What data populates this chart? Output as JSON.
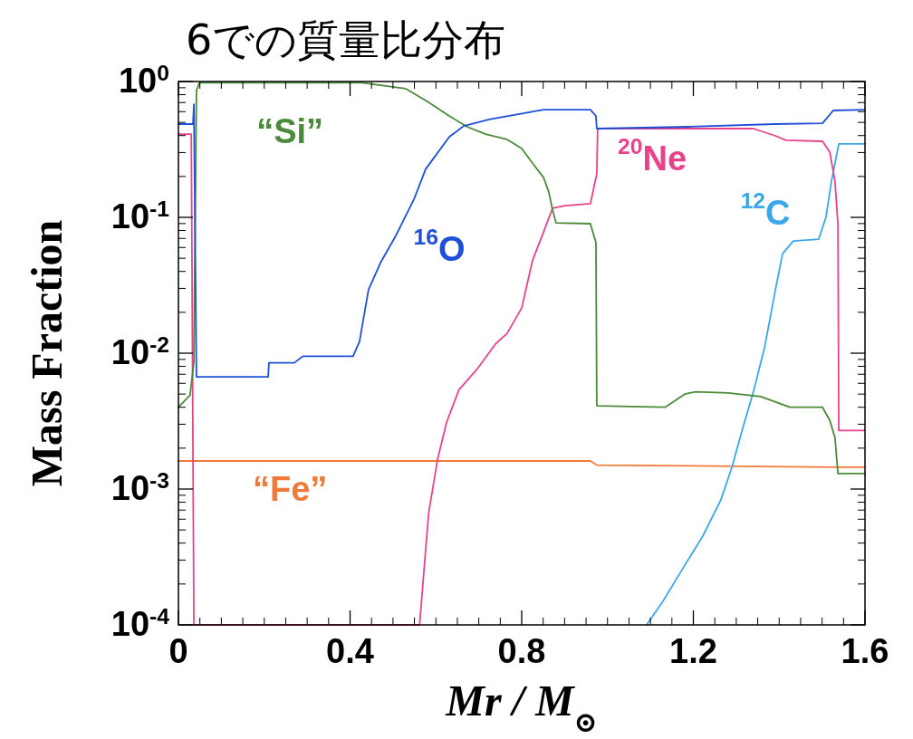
{
  "chart_data": {
    "type": "line",
    "title": "6での質量比分布",
    "xlabel": "Mr / M$_{⊙}$",
    "ylabel": "Mass Fraction",
    "log": "y",
    "xlim": [
      0,
      1.6
    ],
    "ylim": [
      0.0001,
      1
    ],
    "xticks": [
      0,
      0.4,
      0.8,
      1.2,
      1.6
    ],
    "yticks": [
      {
        "value": 0.0001,
        "label": "10$^{-4}$"
      },
      {
        "value": 0.001,
        "label": "10$^{-3}$"
      },
      {
        "value": 0.01,
        "label": "10$^{-2}$"
      },
      {
        "value": 0.1,
        "label": "10$^{-1}$"
      },
      {
        "value": 1,
        "label": "10$^{0}$"
      }
    ],
    "series": [
      {
        "name": "“Fe”",
        "color": "#f07a3a",
        "x": [
          0,
          0.96,
          0.975,
          1.53,
          1.6
        ],
        "values": [
          0.00161,
          0.00161,
          0.0015,
          0.00145,
          0.00145
        ]
      },
      {
        "name": "$^{12}$C",
        "color": "#3aa8e8",
        "x": [
          1.091,
          1.129,
          1.18,
          1.222,
          1.264,
          1.29,
          1.315,
          1.34,
          1.366,
          1.391,
          1.408,
          1.433,
          1.492,
          1.509,
          1.522,
          1.539,
          1.6
        ],
        "values": [
          0.0001,
          0.000149,
          0.000275,
          0.00045,
          0.00083,
          0.00145,
          0.0028,
          0.0052,
          0.011,
          0.029,
          0.054,
          0.067,
          0.069,
          0.1,
          0.185,
          0.347,
          0.347
        ]
      },
      {
        "name": "$^{20}$Ne",
        "color": "#e8428a",
        "x": [
          0,
          0.03,
          0.036,
          0.562,
          0.583,
          0.604,
          0.625,
          0.654,
          0.697,
          0.739,
          0.766,
          0.8,
          0.825,
          0.851,
          0.872,
          0.901,
          0.96,
          0.975,
          0.977,
          1.34,
          1.391,
          1.416,
          1.501,
          1.518,
          1.53,
          1.537,
          1.539,
          1.6
        ],
        "values": [
          0.41,
          0.41,
          0.0001,
          0.0001,
          0.00066,
          0.00166,
          0.0031,
          0.0054,
          0.0077,
          0.0117,
          0.014,
          0.0215,
          0.0479,
          0.078,
          0.117,
          0.122,
          0.126,
          0.209,
          0.45,
          0.45,
          0.398,
          0.369,
          0.363,
          0.302,
          0.185,
          0.0885,
          0.0027,
          0.0027
        ]
      },
      {
        "name": "“Si”",
        "color": "#4a8a3a",
        "x": [
          0,
          0.027,
          0.036,
          0.042,
          0.049,
          0.428,
          0.53,
          0.58,
          0.631,
          0.673,
          0.716,
          0.766,
          0.8,
          0.825,
          0.851,
          0.863,
          0.872,
          0.88,
          0.96,
          0.973,
          0.975,
          1.134,
          1.18,
          1.205,
          1.281,
          1.357,
          1.425,
          1.501,
          1.518,
          1.53,
          1.537,
          1.6
        ],
        "values": [
          0.004,
          0.0049,
          0.0086,
          0.86,
          0.98,
          0.98,
          0.885,
          0.714,
          0.558,
          0.464,
          0.41,
          0.375,
          0.321,
          0.251,
          0.196,
          0.154,
          0.113,
          0.091,
          0.0898,
          0.065,
          0.0041,
          0.004,
          0.005,
          0.0052,
          0.0051,
          0.0048,
          0.004,
          0.004,
          0.0032,
          0.0024,
          0.0013,
          0.0013
        ]
      },
      {
        "name": "$^{16}$O",
        "color": "#1f4fd6",
        "x": [
          0,
          0.034,
          0.036,
          0.042,
          0.209,
          0.211,
          0.27,
          0.29,
          0.407,
          0.422,
          0.443,
          0.471,
          0.507,
          0.549,
          0.576,
          0.631,
          0.665,
          0.724,
          0.783,
          0.851,
          0.96,
          0.973,
          0.975,
          1.188,
          1.391,
          1.501,
          1.526,
          1.6
        ],
        "values": [
          0.486,
          0.486,
          0.68,
          0.0067,
          0.0067,
          0.0085,
          0.0085,
          0.0095,
          0.0095,
          0.0122,
          0.0293,
          0.0464,
          0.0736,
          0.136,
          0.226,
          0.39,
          0.471,
          0.525,
          0.567,
          0.621,
          0.621,
          0.558,
          0.45,
          0.464,
          0.486,
          0.493,
          0.612,
          0.621
        ]
      }
    ]
  }
}
